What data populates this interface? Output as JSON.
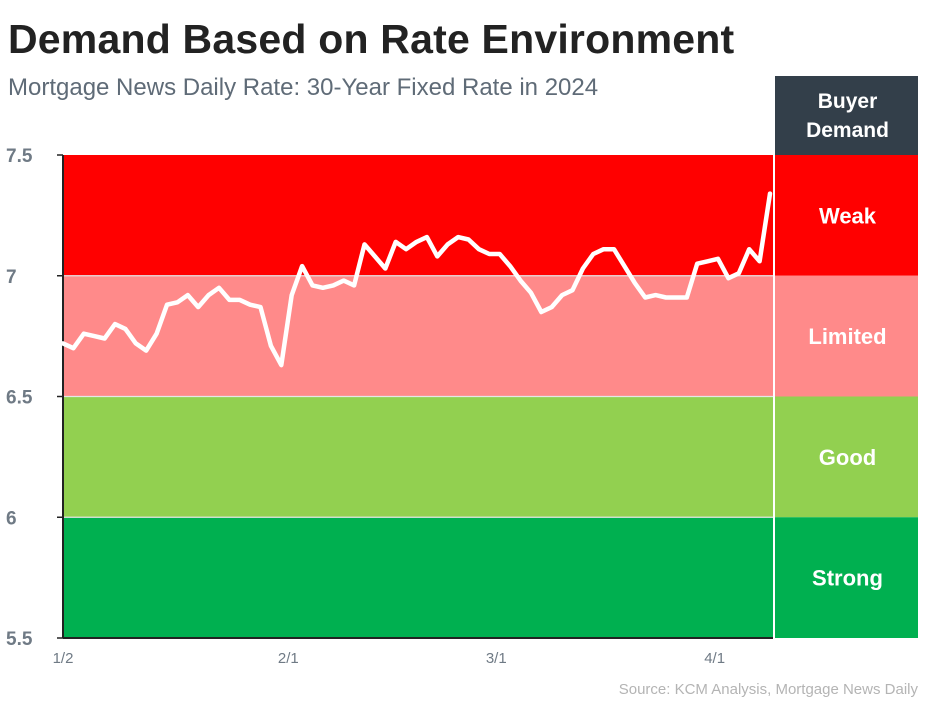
{
  "title": "Demand Based on Rate Environment",
  "subtitle": "Mortgage News Daily Rate: 30-Year Fixed Rate in 2024",
  "source": "Source: KCM Analysis, Mortgage News Daily",
  "legend_header": [
    "Buyer",
    "Demand"
  ],
  "zones": [
    {
      "label": "Weak",
      "from": 7.0,
      "to": 7.5,
      "color": "#ff0000"
    },
    {
      "label": "Limited",
      "from": 6.5,
      "to": 7.0,
      "color": "#ff8a8a"
    },
    {
      "label": "Good",
      "from": 6.0,
      "to": 6.5,
      "color": "#92d050"
    },
    {
      "label": "Strong",
      "from": 5.5,
      "to": 6.0,
      "color": "#00b050"
    }
  ],
  "colors": {
    "header": "#333f4a",
    "line": "#ffffff",
    "axis": "#222222"
  },
  "chart_data": {
    "type": "line",
    "title": "Demand Based on Rate Environment",
    "subtitle": "Mortgage News Daily Rate: 30-Year Fixed Rate in 2024",
    "ylim": [
      5.5,
      7.5
    ],
    "yticks": [
      "7.5",
      "7",
      "6.5",
      "6",
      "5.5"
    ],
    "xticks": [
      "1/2",
      "2/1",
      "3/1",
      "4/1"
    ],
    "series": [
      {
        "values": [
          6.72,
          6.7,
          6.76,
          6.75,
          6.74,
          6.8,
          6.78,
          6.72,
          6.69,
          6.76,
          6.88,
          6.89,
          6.92,
          6.87,
          6.92,
          6.95,
          6.9,
          6.9,
          6.88,
          6.87,
          6.71,
          6.63,
          6.92,
          7.04,
          6.96,
          6.95,
          6.96,
          6.98,
          6.96,
          7.13,
          7.08,
          7.03,
          7.14,
          7.11,
          7.14,
          7.16,
          7.08,
          7.13,
          7.16,
          7.15,
          7.11,
          7.09,
          7.09,
          7.04,
          6.98,
          6.93,
          6.85,
          6.87,
          6.92,
          6.94,
          7.03,
          7.09,
          7.11,
          7.11,
          7.04,
          6.97,
          6.91,
          6.92,
          6.91,
          6.91,
          6.91,
          7.05,
          7.06,
          7.07,
          6.99,
          7.01,
          7.11,
          7.06,
          7.34
        ]
      }
    ]
  }
}
